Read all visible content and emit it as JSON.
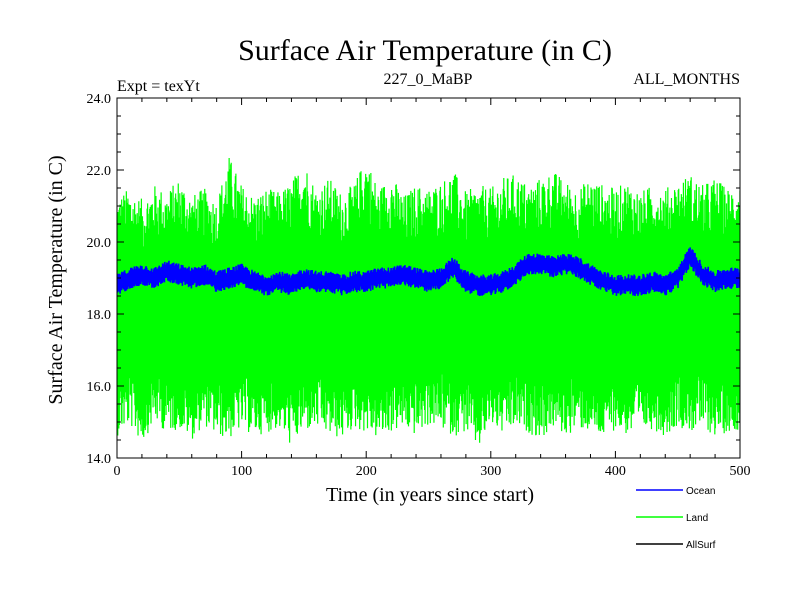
{
  "chart_data": {
    "type": "line",
    "title": "Surface Air Temperature (in C)",
    "subtitle_left": "Expt = texYt",
    "subtitle_center": "227_0_MaBP",
    "subtitle_right": "ALL_MONTHS",
    "xlabel": "Time (in years since start)",
    "ylabel": "Surface Air Temperature (in C)",
    "xlim": [
      0,
      500
    ],
    "ylim": [
      14.0,
      24.0
    ],
    "x_ticks": [
      0,
      100,
      200,
      300,
      400,
      500
    ],
    "x_tick_labels": [
      "0",
      "100",
      "200",
      "300",
      "400",
      "500"
    ],
    "y_ticks": [
      14.0,
      16.0,
      18.0,
      20.0,
      22.0,
      24.0
    ],
    "y_tick_labels": [
      "14.0",
      "16.0",
      "18.0",
      "20.0",
      "22.0",
      "24.0"
    ],
    "grid": false,
    "legend_position": "bottom-right",
    "series": [
      {
        "name": "Land",
        "color": "#00ff00",
        "x": [
          0,
          10,
          20,
          30,
          40,
          50,
          60,
          70,
          80,
          90,
          100,
          110,
          120,
          130,
          140,
          150,
          160,
          170,
          180,
          190,
          200,
          210,
          220,
          230,
          240,
          250,
          260,
          270,
          280,
          290,
          300,
          310,
          320,
          330,
          340,
          350,
          360,
          370,
          380,
          390,
          400,
          410,
          420,
          430,
          440,
          450,
          460,
          470,
          480,
          490,
          500
        ],
        "y_max": [
          21.3,
          21.5,
          21.2,
          21.6,
          21.4,
          21.8,
          21.3,
          21.5,
          21.2,
          22.4,
          21.6,
          21.3,
          21.5,
          21.4,
          21.7,
          22.3,
          21.5,
          21.8,
          21.4,
          21.6,
          22.4,
          21.5,
          21.9,
          21.3,
          21.6,
          21.5,
          21.7,
          22.0,
          21.4,
          21.6,
          21.5,
          21.8,
          21.9,
          21.6,
          21.8,
          22.0,
          21.7,
          21.5,
          21.8,
          21.6,
          21.5,
          21.7,
          21.4,
          21.6,
          21.5,
          21.7,
          21.9,
          21.6,
          21.8,
          21.5,
          21.7
        ],
        "y_min": [
          14.6,
          14.9,
          14.4,
          15.0,
          14.7,
          14.8,
          14.5,
          14.9,
          14.6,
          14.5,
          14.8,
          14.6,
          14.7,
          14.8,
          14.3,
          14.7,
          14.8,
          14.6,
          14.5,
          14.8,
          14.7,
          14.5,
          14.7,
          14.8,
          14.6,
          14.9,
          14.8,
          14.6,
          14.7,
          14.2,
          14.9,
          14.6,
          14.8,
          14.7,
          14.5,
          14.8,
          14.6,
          14.8,
          14.7,
          14.5,
          14.8,
          14.6,
          14.7,
          14.8,
          14.6,
          14.9,
          14.7,
          14.8,
          14.6,
          14.7,
          14.8
        ]
      },
      {
        "name": "Ocean",
        "color": "#0000ff",
        "x": [
          0,
          10,
          20,
          30,
          40,
          50,
          60,
          70,
          80,
          90,
          100,
          110,
          120,
          130,
          140,
          150,
          160,
          170,
          180,
          190,
          200,
          210,
          220,
          230,
          240,
          250,
          260,
          270,
          280,
          290,
          300,
          310,
          320,
          330,
          340,
          350,
          360,
          370,
          380,
          390,
          400,
          410,
          420,
          430,
          440,
          450,
          460,
          470,
          480,
          490,
          500
        ],
        "y": [
          18.8,
          19.0,
          19.1,
          19.0,
          19.2,
          19.1,
          19.0,
          19.1,
          18.9,
          19.0,
          19.1,
          18.9,
          18.8,
          18.9,
          18.8,
          19.0,
          18.9,
          18.9,
          18.8,
          18.9,
          18.9,
          19.0,
          19.0,
          19.1,
          19.0,
          18.9,
          19.0,
          19.3,
          18.9,
          18.8,
          18.8,
          18.9,
          19.1,
          19.4,
          19.4,
          19.3,
          19.4,
          19.3,
          19.1,
          18.9,
          18.8,
          18.8,
          18.8,
          18.9,
          18.8,
          19.0,
          19.6,
          19.1,
          18.9,
          19.0,
          19.0
        ]
      },
      {
        "name": "AllSurf",
        "color": "#000000",
        "x": [],
        "y": []
      }
    ]
  }
}
